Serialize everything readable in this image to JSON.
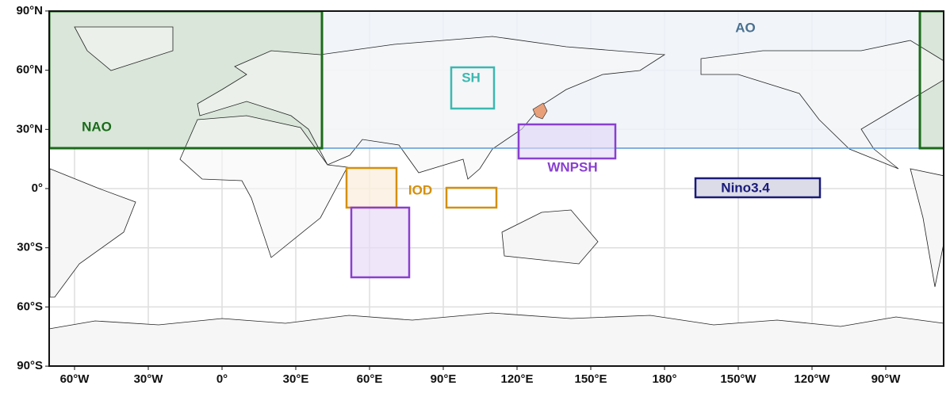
{
  "map": {
    "x_ticks": [
      {
        "value": -60,
        "label": "60°W"
      },
      {
        "value": -30,
        "label": "30°W"
      },
      {
        "value": 0,
        "label": "0°"
      },
      {
        "value": 30,
        "label": "30°E"
      },
      {
        "value": 60,
        "label": "60°E"
      },
      {
        "value": 90,
        "label": "90°E"
      },
      {
        "value": 120,
        "label": "120°E"
      },
      {
        "value": 150,
        "label": "150°E"
      },
      {
        "value": 180,
        "label": "180°"
      },
      {
        "value": -150,
        "label": "150°W"
      },
      {
        "value": -120,
        "label": "120°W"
      },
      {
        "value": -90,
        "label": "90°W"
      }
    ],
    "y_ticks": [
      {
        "value": 90,
        "label": "90°N"
      },
      {
        "value": 60,
        "label": "60°N"
      },
      {
        "value": 30,
        "label": "30°N"
      },
      {
        "value": 0,
        "label": "0°"
      },
      {
        "value": -30,
        "label": "30°S"
      },
      {
        "value": -60,
        "label": "60°S"
      },
      {
        "value": -90,
        "label": "90°S"
      }
    ],
    "regions": [
      "NAO",
      "AO",
      "SH",
      "WNPSH",
      "IOD",
      "Nino3.4"
    ]
  }
}
